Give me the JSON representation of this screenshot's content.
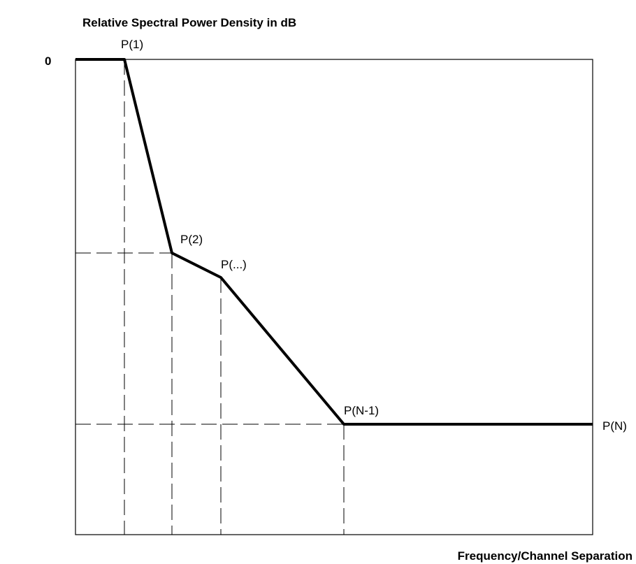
{
  "y_axis_label": "Relative Spectral Power Density in dB",
  "x_axis_label": "Frequency/Channel Separation",
  "y_origin_label": "0",
  "points": [
    {
      "label": "P(1)"
    },
    {
      "label": "P(2)"
    },
    {
      "label": "P(...)"
    },
    {
      "label": "P(N-1)"
    },
    {
      "label": "P(N)"
    }
  ]
}
